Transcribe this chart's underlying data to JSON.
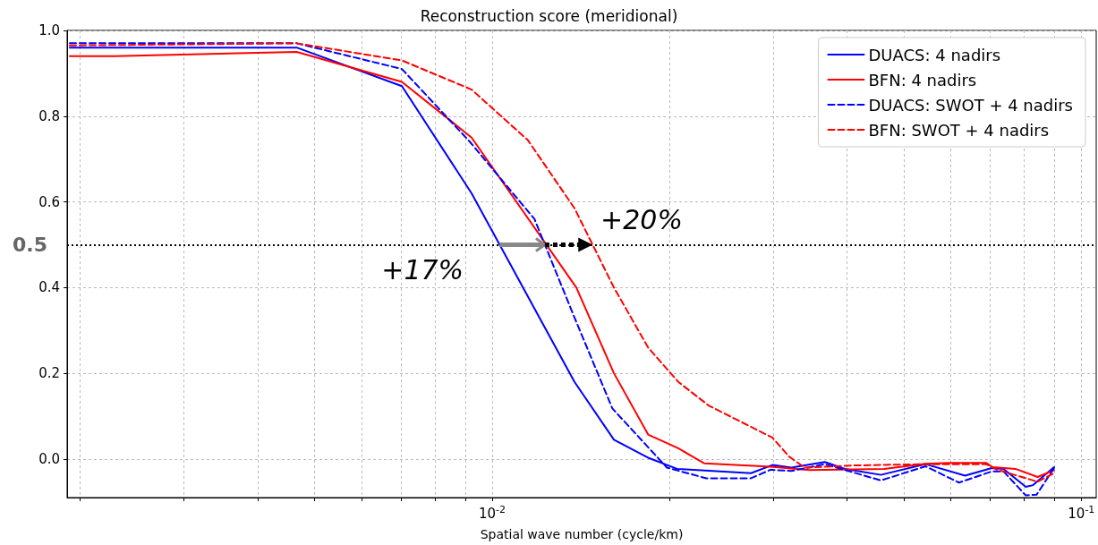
{
  "chart_data": {
    "type": "line",
    "title": "Reconstruction score (meridional)",
    "xlabel": "Spatial wave number (cycle/km)",
    "log": "x",
    "grid": true,
    "legend": "top right",
    "marker": "none",
    "xlim": [
      0.0019,
      0.106
    ],
    "ylim": [
      -0.09,
      1.0
    ],
    "xticks": [
      {
        "value": 0.002,
        "label": null
      },
      {
        "value": 0.003,
        "label": null
      },
      {
        "value": 0.004,
        "label": null
      },
      {
        "value": 0.005,
        "label": null
      },
      {
        "value": 0.006,
        "label": null
      },
      {
        "value": 0.007,
        "label": null
      },
      {
        "value": 0.008,
        "label": null
      },
      {
        "value": 0.009,
        "label": null
      },
      {
        "value": 0.01,
        "label": "10$^{-2}$"
      },
      {
        "value": 0.02,
        "label": null
      },
      {
        "value": 0.03,
        "label": null
      },
      {
        "value": 0.04,
        "label": null
      },
      {
        "value": 0.05,
        "label": null
      },
      {
        "value": 0.06,
        "label": null
      },
      {
        "value": 0.07,
        "label": null
      },
      {
        "value": 0.08,
        "label": null
      },
      {
        "value": 0.09,
        "label": null
      },
      {
        "value": 0.1,
        "label": "10$^{-1}$"
      }
    ],
    "yticks": [
      {
        "value": 0,
        "label": "0.0"
      },
      0.2,
      0.4,
      0.6,
      0.8,
      {
        "value": 1,
        "label": "1.0"
      }
    ],
    "ref_lines": [
      {
        "axis": "y",
        "value": 0.5,
        "label": "0.5",
        "color": "#000000",
        "line_style": "dotted"
      }
    ],
    "annotations": [
      {
        "text": "+17%",
        "x": 0.0118,
        "y": 0.5
      },
      {
        "text": "+20%",
        "x": 0.0148,
        "y": 0.5
      }
    ],
    "series": [
      {
        "name": "DUACS: 4 nadirs",
        "color": "#0000ff",
        "line_style": "solid",
        "x": [
          0.00192,
          0.00466,
          0.00703,
          0.00923,
          0.0138,
          0.0161,
          0.0184,
          0.0206,
          0.0275,
          0.0299,
          0.0322,
          0.0367,
          0.0397,
          0.0457,
          0.0544,
          0.0635,
          0.0705,
          0.0738,
          0.0805,
          0.0828,
          0.0899
        ],
        "values": [
          0.96,
          0.96,
          0.87,
          0.62,
          0.18,
          0.045,
          0.003,
          -0.023,
          -0.033,
          -0.014,
          -0.02,
          -0.007,
          -0.023,
          -0.037,
          -0.012,
          -0.039,
          -0.021,
          -0.023,
          -0.065,
          -0.061,
          -0.019
        ]
      },
      {
        "name": "BFN: 4 nadirs",
        "color": "#ff0000",
        "line_style": "solid",
        "x": [
          0.00192,
          0.00229,
          0.00466,
          0.00703,
          0.00923,
          0.0139,
          0.0161,
          0.0184,
          0.0207,
          0.0229,
          0.0297,
          0.0346,
          0.0463,
          0.0544,
          0.0598,
          0.0689,
          0.0707,
          0.0773,
          0.0843,
          0.0899
        ],
        "values": [
          0.94,
          0.94,
          0.95,
          0.88,
          0.75,
          0.4,
          0.2,
          0.057,
          0.025,
          -0.01,
          -0.018,
          -0.026,
          -0.023,
          -0.011,
          -0.009,
          -0.009,
          -0.019,
          -0.023,
          -0.042,
          -0.026
        ]
      },
      {
        "name": "DUACS: SWOT + 4 nadirs",
        "color": "#0000ff",
        "line_style": "dashed",
        "x": [
          0.00192,
          0.00466,
          0.00703,
          0.00917,
          0.0118,
          0.0138,
          0.016,
          0.0198,
          0.0231,
          0.0275,
          0.0297,
          0.0322,
          0.0367,
          0.0457,
          0.0544,
          0.062,
          0.0705,
          0.0738,
          0.0805,
          0.084,
          0.0899
        ],
        "values": [
          0.97,
          0.97,
          0.91,
          0.74,
          0.56,
          0.33,
          0.118,
          -0.02,
          -0.045,
          -0.045,
          -0.025,
          -0.028,
          -0.012,
          -0.05,
          -0.017,
          -0.055,
          -0.029,
          -0.029,
          -0.085,
          -0.083,
          -0.021
        ]
      },
      {
        "name": "BFN: SWOT + 4 nadirs",
        "color": "#ff0000",
        "line_style": "dashed",
        "x": [
          0.00192,
          0.00466,
          0.00703,
          0.00923,
          0.0115,
          0.0138,
          0.0161,
          0.0184,
          0.0207,
          0.0233,
          0.0275,
          0.0299,
          0.0319,
          0.0339,
          0.0412,
          0.0544,
          0.0689,
          0.072,
          0.0843,
          0.0899
        ],
        "values": [
          0.965,
          0.97,
          0.93,
          0.862,
          0.744,
          0.585,
          0.4,
          0.26,
          0.18,
          0.125,
          0.075,
          0.05,
          0.006,
          -0.02,
          -0.015,
          -0.012,
          -0.012,
          -0.025,
          -0.053,
          -0.033
        ]
      }
    ]
  }
}
